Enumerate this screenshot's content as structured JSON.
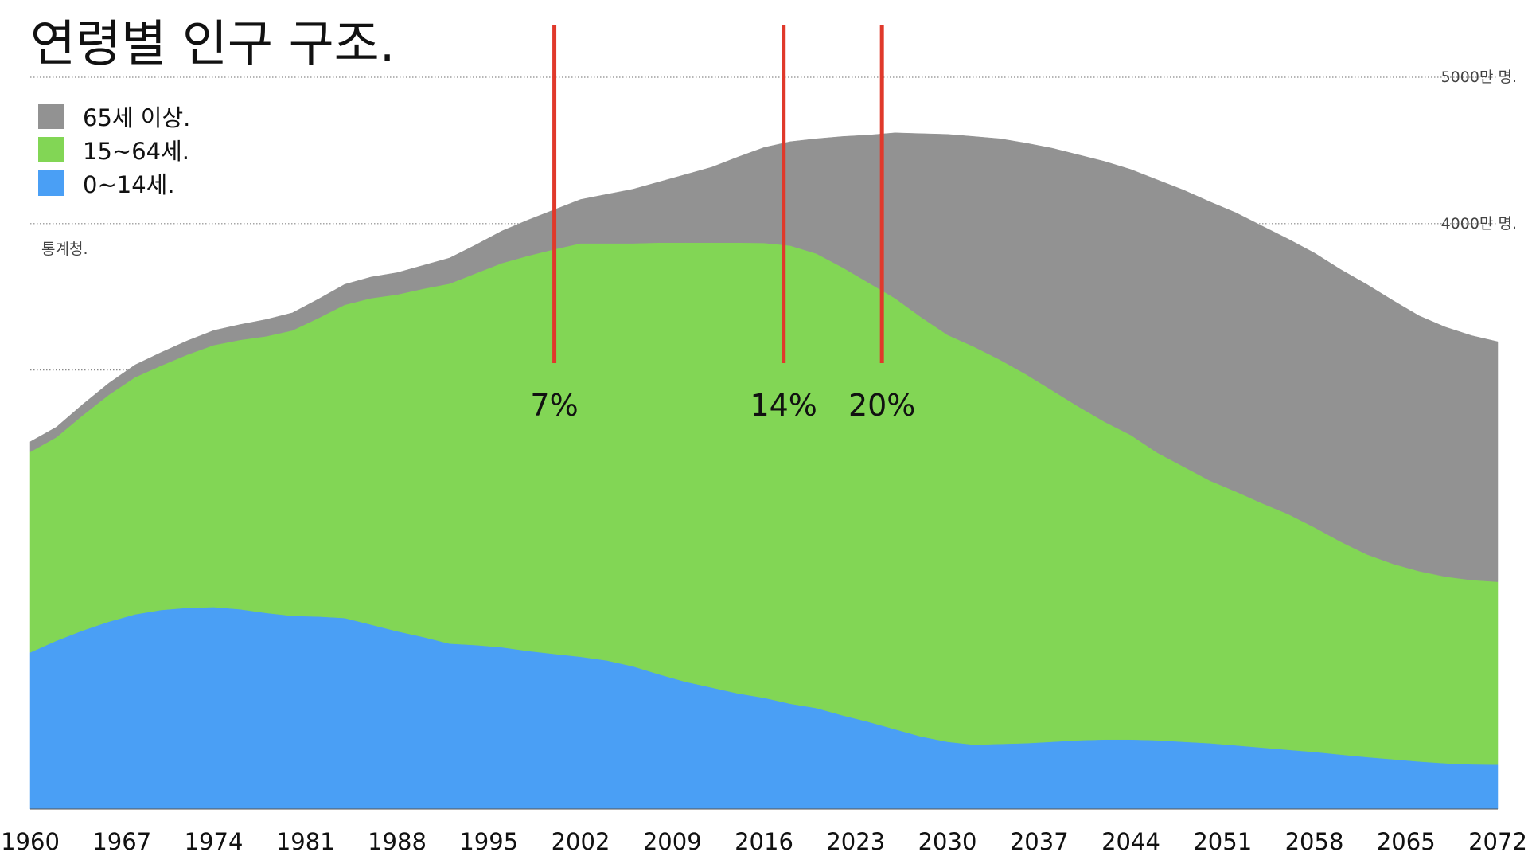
{
  "chart_data": {
    "type": "area",
    "stacked": true,
    "title": "연령별 인구 구조.",
    "source": "통계청.",
    "x": [
      1960,
      1962,
      1964,
      1966,
      1968,
      1970,
      1972,
      1974,
      1976,
      1978,
      1980,
      1982,
      1984,
      1986,
      1988,
      1990,
      1992,
      1994,
      1996,
      1998,
      2000,
      2002,
      2004,
      2006,
      2008,
      2010,
      2012,
      2014,
      2016,
      2018,
      2020,
      2022,
      2024,
      2026,
      2028,
      2030,
      2032,
      2034,
      2036,
      2038,
      2040,
      2042,
      2044,
      2046,
      2048,
      2050,
      2052,
      2054,
      2056,
      2058,
      2060,
      2062,
      2064,
      2066,
      2068,
      2070,
      2072
    ],
    "x_ticks": [
      "1960",
      "1967",
      "1974",
      "1981",
      "1988",
      "1995",
      "2002",
      "2009",
      "2016",
      "2023",
      "2030",
      "2037",
      "2044",
      "2051",
      "2058",
      "2065",
      "2072"
    ],
    "y_ticks": [
      {
        "value": 3000,
        "label": ""
      },
      {
        "value": 4000,
        "label": "4000만 명."
      },
      {
        "value": 5000,
        "label": "5000만 명."
      }
    ],
    "ylim": [
      0,
      5500
    ],
    "grid": "horizontal dotted",
    "legend_position": "top-left",
    "series": [
      {
        "name": "0~14세.",
        "color": "#4a9ff5",
        "values": [
          1070,
          1150,
          1220,
          1280,
          1330,
          1360,
          1375,
          1380,
          1365,
          1340,
          1320,
          1315,
          1305,
          1260,
          1215,
          1175,
          1130,
          1120,
          1105,
          1080,
          1060,
          1040,
          1015,
          975,
          920,
          870,
          830,
          790,
          760,
          720,
          690,
          640,
          595,
          545,
          495,
          460,
          440,
          445,
          450,
          460,
          470,
          475,
          475,
          470,
          460,
          450,
          435,
          420,
          405,
          390,
          372,
          355,
          340,
          325,
          313,
          305,
          303
        ]
      },
      {
        "name": "15~64세.",
        "color": "#82d655",
        "values": [
          1370,
          1390,
          1470,
          1550,
          1620,
          1670,
          1730,
          1790,
          1840,
          1890,
          1950,
          2040,
          2140,
          2230,
          2300,
          2380,
          2460,
          2540,
          2625,
          2700,
          2765,
          2825,
          2850,
          2890,
          2950,
          3000,
          3040,
          3080,
          3108,
          3130,
          3105,
          3060,
          3000,
          2945,
          2865,
          2780,
          2720,
          2625,
          2520,
          2400,
          2280,
          2170,
          2080,
          1965,
          1880,
          1795,
          1735,
          1670,
          1610,
          1535,
          1455,
          1385,
          1335,
          1300,
          1275,
          1260,
          1250
        ]
      },
      {
        "name": "65세 이상.",
        "color": "#929292",
        "values": [
          70,
          70,
          75,
          80,
          85,
          90,
          95,
          100,
          105,
          115,
          120,
          130,
          140,
          145,
          150,
          160,
          175,
          195,
          220,
          245,
          270,
          300,
          335,
          370,
          415,
          465,
          515,
          585,
          652,
          710,
          785,
          895,
          1010,
          1130,
          1255,
          1370,
          1435,
          1510,
          1580,
          1655,
          1720,
          1780,
          1815,
          1865,
          1890,
          1905,
          1905,
          1895,
          1880,
          1875,
          1860,
          1845,
          1800,
          1745,
          1705,
          1670,
          1640
        ]
      }
    ],
    "annotations": [
      {
        "x": 2000,
        "label": "7%",
        "color": "#e0392b"
      },
      {
        "x": 2017.5,
        "label": "14%",
        "color": "#e0392b"
      },
      {
        "x": 2025,
        "label": "20%",
        "color": "#e0392b"
      }
    ]
  }
}
